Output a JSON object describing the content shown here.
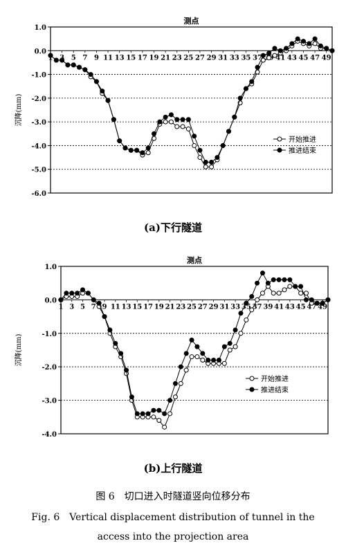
{
  "chart_data": [
    {
      "type": "line",
      "title": "测点",
      "ylabel": "沉降(mm)",
      "subtitle": "(a)下行隧道",
      "ylim": [
        -6.0,
        1.0
      ],
      "yticks": [
        "1.0",
        "0.0",
        "-1.0",
        "-2.0",
        "-3.0",
        "-4.0",
        "-5.0",
        "-6.0"
      ],
      "xticks": [
        "1",
        "3",
        "5",
        "7",
        "9",
        "11",
        "13",
        "15",
        "17",
        "19",
        "21",
        "23",
        "25",
        "27",
        "29",
        "31",
        "33",
        "35",
        "37",
        "39",
        "41",
        "43",
        "45",
        "47",
        "49"
      ],
      "grid": "horizontal dashed",
      "legend_position": "lower-right",
      "x": [
        1,
        2,
        3,
        4,
        5,
        6,
        7,
        8,
        9,
        10,
        11,
        12,
        13,
        14,
        15,
        16,
        17,
        18,
        19,
        20,
        21,
        22,
        23,
        24,
        25,
        26,
        27,
        28,
        29,
        30,
        31,
        32,
        33,
        34,
        35,
        36,
        37,
        38,
        39,
        40,
        41,
        42,
        43,
        44,
        45,
        46,
        47,
        48,
        49,
        50
      ],
      "series": [
        {
          "name": "开始推进",
          "marker": "open-circle",
          "values": [
            -0.2,
            -0.4,
            -0.4,
            -0.6,
            -0.6,
            -0.7,
            -0.8,
            -1.1,
            -1.3,
            -1.8,
            -2.1,
            -2.9,
            -3.8,
            -4.1,
            -4.2,
            -4.2,
            -4.4,
            -4.3,
            -3.7,
            -3.1,
            -3.0,
            -3.0,
            -3.2,
            -3.2,
            -3.3,
            -4.0,
            -4.5,
            -4.9,
            -4.9,
            -4.6,
            -4.0,
            -3.4,
            -2.8,
            -2.2,
            -1.6,
            -1.4,
            -0.9,
            -0.4,
            -0.3,
            -0.2,
            -0.1,
            0.0,
            0.2,
            0.4,
            0.3,
            0.2,
            0.3,
            0.1,
            0.1,
            0.0
          ]
        },
        {
          "name": "推进结束",
          "marker": "filled-circle",
          "values": [
            -0.2,
            -0.4,
            -0.4,
            -0.6,
            -0.6,
            -0.7,
            -0.8,
            -1.0,
            -1.3,
            -1.7,
            -2.1,
            -2.9,
            -3.8,
            -4.1,
            -4.2,
            -4.2,
            -4.3,
            -4.1,
            -3.5,
            -3.0,
            -2.8,
            -2.7,
            -2.9,
            -2.9,
            -2.9,
            -3.6,
            -4.2,
            -4.7,
            -4.7,
            -4.5,
            -4.0,
            -3.4,
            -2.8,
            -2.0,
            -1.6,
            -1.3,
            -0.7,
            -0.2,
            -0.1,
            0.1,
            0.0,
            0.1,
            0.3,
            0.5,
            0.4,
            0.3,
            0.5,
            0.2,
            0.1,
            0.0
          ]
        }
      ]
    },
    {
      "type": "line",
      "title": "测点",
      "ylabel": "沉降(mm)",
      "subtitle": "(b)上行隧道",
      "ylim": [
        -4.0,
        1.0
      ],
      "yticks": [
        "1.0",
        "0.0",
        "-1.0",
        "-2.0",
        "-3.0",
        "-4.0"
      ],
      "xticks": [
        "1",
        "3",
        "5",
        "7",
        "9",
        "11",
        "13",
        "15",
        "17",
        "19",
        "21",
        "23",
        "25",
        "27",
        "29",
        "31",
        "33",
        "35",
        "37",
        "39",
        "41",
        "43",
        "45",
        "47",
        "49"
      ],
      "grid": "horizontal dashed",
      "legend_position": "lower-right",
      "x": [
        1,
        2,
        3,
        4,
        5,
        6,
        7,
        8,
        9,
        10,
        11,
        12,
        13,
        14,
        15,
        16,
        17,
        18,
        19,
        20,
        21,
        22,
        23,
        24,
        25,
        26,
        27,
        28,
        29,
        30,
        31,
        32,
        33,
        34,
        35,
        36,
        37,
        38,
        39,
        40,
        41,
        42,
        43,
        44,
        45,
        46,
        47,
        48,
        49,
        50
      ],
      "series": [
        {
          "name": "开始推进",
          "marker": "open-circle",
          "values": [
            0.0,
            0.1,
            0.1,
            0.1,
            0.2,
            0.2,
            0.0,
            -0.2,
            -0.5,
            -1.0,
            -1.4,
            -1.7,
            -2.2,
            -3.0,
            -3.5,
            -3.5,
            -3.5,
            -3.5,
            -3.6,
            -3.8,
            -3.4,
            -2.9,
            -2.5,
            -2.1,
            -1.7,
            -1.7,
            -1.8,
            -1.9,
            -1.9,
            -1.9,
            -1.9,
            -1.5,
            -1.4,
            -1.0,
            -0.6,
            -0.3,
            0.0,
            0.2,
            0.4,
            0.2,
            0.2,
            0.3,
            0.4,
            0.4,
            0.2,
            0.2,
            -0.1,
            -0.1,
            -0.1,
            0.0
          ]
        },
        {
          "name": "推进结束",
          "marker": "filled-circle",
          "values": [
            0.0,
            0.2,
            0.2,
            0.2,
            0.3,
            0.2,
            0.0,
            -0.1,
            -0.5,
            -0.9,
            -1.3,
            -1.6,
            -2.1,
            -2.9,
            -3.4,
            -3.4,
            -3.4,
            -3.3,
            -3.3,
            -3.4,
            -3.0,
            -2.5,
            -2.0,
            -1.6,
            -1.2,
            -1.4,
            -1.6,
            -1.8,
            -1.8,
            -1.8,
            -1.4,
            -1.3,
            -0.9,
            -0.4,
            -0.1,
            0.1,
            0.5,
            0.8,
            0.5,
            0.6,
            0.6,
            0.6,
            0.6,
            0.4,
            0.4,
            0.0,
            0.0,
            -0.1,
            -0.1,
            0.0
          ]
        }
      ]
    }
  ],
  "captions": {
    "figure_zh": "图 6　切口进入时隧道竖向位移分布",
    "figure_en_1": "Fig. 6　Vertical displacement distribution of tunnel in the",
    "figure_en_2": "access into the projection area"
  }
}
